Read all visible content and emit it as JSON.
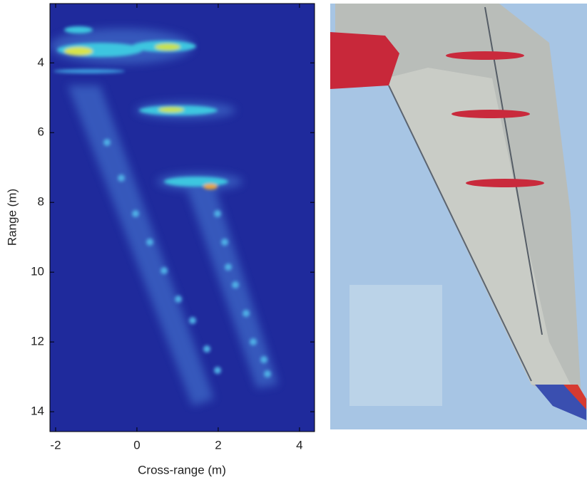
{
  "chart_data": {
    "type": "image",
    "x_label": "Cross-range (m)",
    "y_label": "Range (m)",
    "xlim": [
      -2.14,
      4.37
    ],
    "ylim": [
      2.3,
      14.57
    ],
    "y_reversed": true,
    "xticks": [
      -2,
      0,
      2,
      4
    ],
    "yticks": [
      4,
      6,
      8,
      10,
      12,
      14
    ],
    "color": "#1f2a9c"
  }
}
